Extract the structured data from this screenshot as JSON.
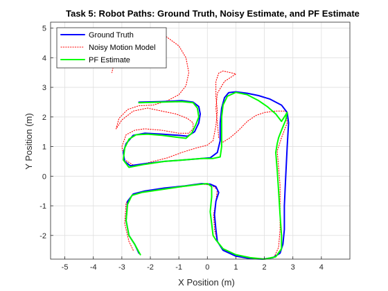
{
  "chart_data": {
    "type": "line",
    "title": "Task 5: Robot Paths: Ground Truth, Noisy Estimate, and PF Estimate",
    "xlabel": "X Position (m)",
    "ylabel": "Y Position (m)",
    "xlim": [
      -5.5,
      5.0
    ],
    "ylim": [
      -2.8,
      5.2
    ],
    "xticks": [
      -5,
      -4,
      -3,
      -2,
      -1,
      0,
      1,
      2,
      3,
      4
    ],
    "yticks": [
      -2,
      -1,
      0,
      1,
      2,
      3,
      4,
      5
    ],
    "grid": true,
    "legend_position": "top-left",
    "series": [
      {
        "name": "Ground Truth",
        "color": "#0000ff",
        "style": "solid",
        "points": [
          [
            -2.4,
            -2.6
          ],
          [
            -2.55,
            -2.3
          ],
          [
            -2.75,
            -2.0
          ],
          [
            -2.85,
            -1.5
          ],
          [
            -2.8,
            -0.85
          ],
          [
            -2.6,
            -0.6
          ],
          [
            -2.2,
            -0.5
          ],
          [
            -1.5,
            -0.4
          ],
          [
            -0.8,
            -0.33
          ],
          [
            -0.2,
            -0.25
          ],
          [
            0.1,
            -0.27
          ],
          [
            0.3,
            -0.35
          ],
          [
            0.4,
            -0.55
          ],
          [
            0.3,
            -0.85
          ],
          [
            0.25,
            -1.3
          ],
          [
            0.3,
            -1.8
          ],
          [
            0.35,
            -2.2
          ],
          [
            0.55,
            -2.5
          ],
          [
            1.0,
            -2.7
          ],
          [
            1.5,
            -2.78
          ],
          [
            1.95,
            -2.8
          ],
          [
            2.3,
            -2.75
          ],
          [
            2.55,
            -2.6
          ],
          [
            2.65,
            -2.3
          ],
          [
            2.7,
            -1.8
          ],
          [
            2.7,
            -1.0
          ],
          [
            2.75,
            0.0
          ],
          [
            2.8,
            1.0
          ],
          [
            2.85,
            1.8
          ],
          [
            2.8,
            2.15
          ],
          [
            2.6,
            2.4
          ],
          [
            2.2,
            2.6
          ],
          [
            1.8,
            2.72
          ],
          [
            1.4,
            2.8
          ],
          [
            1.0,
            2.85
          ],
          [
            0.75,
            2.82
          ],
          [
            0.6,
            2.65
          ],
          [
            0.5,
            2.3
          ],
          [
            0.45,
            1.8
          ],
          [
            0.45,
            1.2
          ],
          [
            0.35,
            0.8
          ],
          [
            0.1,
            0.62
          ],
          [
            -0.2,
            0.6
          ],
          [
            -0.8,
            0.55
          ],
          [
            -1.5,
            0.5
          ],
          [
            -2.2,
            0.42
          ],
          [
            -2.7,
            0.35
          ],
          [
            -2.9,
            0.5
          ],
          [
            -2.95,
            0.8
          ],
          [
            -2.85,
            1.1
          ],
          [
            -2.6,
            1.38
          ],
          [
            -2.2,
            1.45
          ],
          [
            -1.6,
            1.42
          ],
          [
            -1.0,
            1.38
          ],
          [
            -0.7,
            1.35
          ],
          [
            -0.45,
            1.5
          ],
          [
            -0.3,
            1.8
          ],
          [
            -0.25,
            2.1
          ],
          [
            -0.3,
            2.35
          ],
          [
            -0.5,
            2.5
          ],
          [
            -0.9,
            2.55
          ],
          [
            -1.6,
            2.52
          ],
          [
            -2.4,
            2.5
          ]
        ]
      },
      {
        "name": "Noisy Motion Model",
        "color": "#ff0000",
        "style": "dotted",
        "points": [
          [
            -2.6,
            -2.5
          ],
          [
            -2.75,
            -2.2
          ],
          [
            -2.9,
            -1.6
          ],
          [
            -2.85,
            -0.9
          ],
          [
            -2.6,
            -0.62
          ],
          [
            -2.2,
            -0.52
          ],
          [
            -1.5,
            -0.42
          ],
          [
            -0.8,
            -0.35
          ],
          [
            -0.2,
            -0.27
          ],
          [
            0.15,
            -0.3
          ],
          [
            0.35,
            -0.45
          ],
          [
            0.3,
            -0.85
          ],
          [
            0.22,
            -1.3
          ],
          [
            0.25,
            -1.8
          ],
          [
            0.35,
            -2.2
          ],
          [
            0.6,
            -2.5
          ],
          [
            1.1,
            -2.72
          ],
          [
            1.6,
            -2.8
          ],
          [
            2.0,
            -2.8
          ],
          [
            2.35,
            -2.72
          ],
          [
            2.5,
            -2.4
          ],
          [
            2.55,
            -1.8
          ],
          [
            2.55,
            -1.0
          ],
          [
            2.55,
            -0.3
          ],
          [
            2.5,
            0.3
          ],
          [
            2.45,
            0.85
          ],
          [
            2.6,
            1.3
          ],
          [
            2.8,
            1.8
          ],
          [
            2.75,
            2.2
          ],
          [
            2.4,
            2.2
          ],
          [
            2.0,
            2.15
          ],
          [
            1.7,
            2.05
          ],
          [
            1.4,
            1.85
          ],
          [
            1.1,
            1.55
          ],
          [
            0.8,
            1.3
          ],
          [
            0.55,
            1.15
          ],
          [
            0.4,
            1.3
          ],
          [
            0.35,
            1.8
          ],
          [
            0.3,
            2.3
          ],
          [
            0.35,
            2.8
          ],
          [
            0.6,
            3.2
          ],
          [
            1.0,
            3.45
          ],
          [
            0.8,
            3.5
          ],
          [
            0.55,
            3.55
          ],
          [
            0.4,
            3.48
          ],
          [
            0.3,
            3.2
          ],
          [
            0.3,
            2.7
          ],
          [
            0.35,
            2.2
          ],
          [
            0.3,
            1.7
          ],
          [
            0.2,
            1.2
          ],
          [
            0.0,
            1.05
          ],
          [
            -0.4,
            0.95
          ],
          [
            -0.9,
            0.8
          ],
          [
            -1.4,
            0.62
          ],
          [
            -1.9,
            0.5
          ],
          [
            -2.3,
            0.4
          ],
          [
            -2.6,
            0.38
          ],
          [
            -2.9,
            0.55
          ],
          [
            -3.0,
            1.0
          ],
          [
            -2.85,
            1.4
          ],
          [
            -2.55,
            1.55
          ],
          [
            -2.2,
            1.6
          ],
          [
            -1.6,
            1.55
          ],
          [
            -1.0,
            1.45
          ],
          [
            -0.65,
            1.45
          ],
          [
            -0.5,
            1.6
          ],
          [
            -0.5,
            1.8
          ],
          [
            -0.7,
            1.95
          ],
          [
            -1.1,
            2.1
          ],
          [
            -1.6,
            2.2
          ],
          [
            -2.1,
            2.3
          ],
          [
            -2.6,
            2.2
          ],
          [
            -3.0,
            1.9
          ],
          [
            -3.2,
            1.6
          ],
          [
            -3.1,
            1.95
          ],
          [
            -2.8,
            2.25
          ],
          [
            -2.4,
            2.38
          ],
          [
            -1.9,
            2.4
          ],
          [
            -1.4,
            2.55
          ],
          [
            -1.0,
            2.75
          ],
          [
            -0.75,
            3.05
          ],
          [
            -0.65,
            3.5
          ],
          [
            -0.75,
            4.0
          ],
          [
            -1.0,
            4.4
          ],
          [
            -1.5,
            4.75
          ],
          [
            -2.0,
            4.9
          ],
          [
            -2.5,
            4.85
          ],
          [
            -2.9,
            4.55
          ],
          [
            -3.15,
            4.15
          ],
          [
            -3.3,
            3.7
          ],
          [
            -3.35,
            3.5
          ]
        ]
      },
      {
        "name": "PF Estimate",
        "color": "#00ff00",
        "style": "solid",
        "points": [
          [
            -2.35,
            -2.65
          ],
          [
            -2.55,
            -2.3
          ],
          [
            -2.75,
            -2.0
          ],
          [
            -2.85,
            -1.5
          ],
          [
            -2.8,
            -0.95
          ],
          [
            -2.65,
            -0.65
          ],
          [
            -2.3,
            -0.55
          ],
          [
            -1.6,
            -0.45
          ],
          [
            -0.9,
            -0.35
          ],
          [
            -0.3,
            -0.28
          ],
          [
            0.0,
            -0.25
          ],
          [
            0.15,
            -0.35
          ],
          [
            0.15,
            -0.7
          ],
          [
            0.1,
            -1.2
          ],
          [
            0.15,
            -1.6
          ],
          [
            0.2,
            -2.0
          ],
          [
            0.3,
            -2.15
          ],
          [
            0.55,
            -2.45
          ],
          [
            1.0,
            -2.65
          ],
          [
            1.5,
            -2.75
          ],
          [
            2.0,
            -2.8
          ],
          [
            2.4,
            -2.72
          ],
          [
            2.6,
            -2.45
          ],
          [
            2.6,
            -2.0
          ],
          [
            2.55,
            -1.3
          ],
          [
            2.5,
            -0.5
          ],
          [
            2.45,
            0.2
          ],
          [
            2.4,
            0.8
          ],
          [
            2.45,
            1.1
          ],
          [
            2.5,
            1.3
          ],
          [
            2.6,
            1.55
          ],
          [
            2.75,
            1.9
          ],
          [
            2.8,
            2.15
          ],
          [
            2.6,
            1.85
          ],
          [
            2.4,
            2.1
          ],
          [
            2.1,
            2.35
          ],
          [
            1.8,
            2.55
          ],
          [
            1.4,
            2.75
          ],
          [
            1.0,
            2.83
          ],
          [
            0.7,
            2.7
          ],
          [
            0.55,
            2.4
          ],
          [
            0.5,
            2.0
          ],
          [
            0.5,
            1.5
          ],
          [
            0.5,
            1.0
          ],
          [
            0.45,
            0.65
          ],
          [
            0.2,
            0.6
          ],
          [
            -0.2,
            0.6
          ],
          [
            -0.8,
            0.55
          ],
          [
            -1.5,
            0.5
          ],
          [
            -2.2,
            0.4
          ],
          [
            -2.75,
            0.3
          ],
          [
            -2.95,
            0.55
          ],
          [
            -2.9,
            0.95
          ],
          [
            -2.75,
            1.25
          ],
          [
            -2.5,
            1.4
          ],
          [
            -2.1,
            1.42
          ],
          [
            -1.6,
            1.38
          ],
          [
            -1.1,
            1.32
          ],
          [
            -0.75,
            1.28
          ],
          [
            -0.55,
            1.45
          ],
          [
            -0.4,
            1.75
          ],
          [
            -0.3,
            2.0
          ],
          [
            -0.35,
            2.3
          ],
          [
            -0.5,
            2.48
          ],
          [
            -0.9,
            2.52
          ],
          [
            -1.6,
            2.5
          ],
          [
            -2.4,
            2.48
          ]
        ]
      }
    ]
  }
}
